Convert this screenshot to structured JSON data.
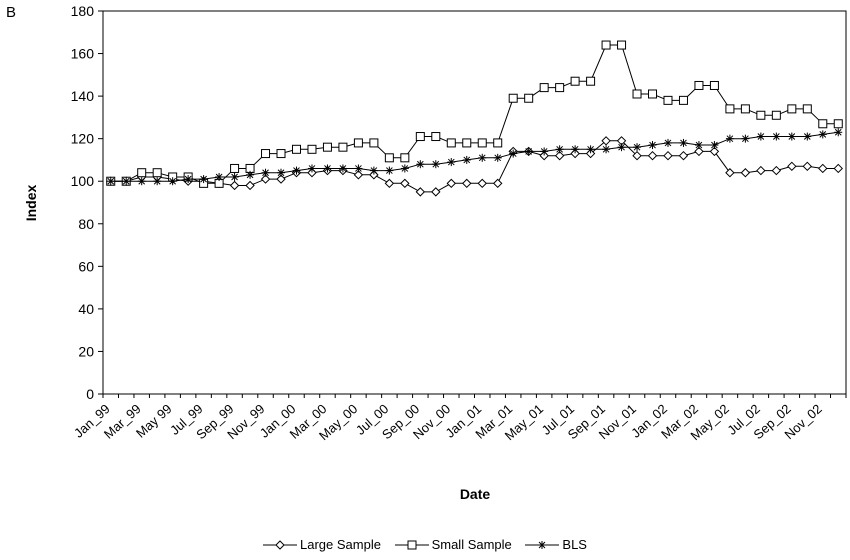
{
  "panel_label": "B",
  "chart_data": {
    "type": "line",
    "xlabel": "Date",
    "ylabel": "Index",
    "ylim": [
      0,
      180
    ],
    "yticks": [
      0,
      20,
      40,
      60,
      80,
      100,
      120,
      140,
      160,
      180
    ],
    "grid": false,
    "legend_position": "bottom",
    "x": [
      "Jan_99",
      "Feb_99",
      "Mar_99",
      "Apr_99",
      "May_99",
      "Jun_99",
      "Jul_99",
      "Aug_99",
      "Sep_99",
      "Oct_99",
      "Nov_99",
      "Dec_99",
      "Jan_00",
      "Feb_00",
      "Mar_00",
      "Apr_00",
      "May_00",
      "Jun_00",
      "Jul_00",
      "Aug_00",
      "Sep_00",
      "Oct_00",
      "Nov_00",
      "Dec_00",
      "Jan_01",
      "Feb_01",
      "Mar_01",
      "Apr_01",
      "May_01",
      "Jun_01",
      "Jul_01",
      "Aug_01",
      "Sep_01",
      "Oct_01",
      "Nov_01",
      "Dec_01",
      "Jan_02",
      "Feb_02",
      "Mar_02",
      "Apr_02",
      "May_02",
      "Jun_02",
      "Jul_02",
      "Aug_02",
      "Sep_02",
      "Oct_02",
      "Nov_02",
      "Dec_02"
    ],
    "xtick_labels": [
      "Jan_99",
      "Mar_99",
      "May 99",
      "Jul_99",
      "Sep_99",
      "Nov_99",
      "Jan_00",
      "Mar_00",
      "May_00",
      "Jul_00",
      "Sep_00",
      "Nov_00",
      "Jan_01",
      "Mar_01",
      "May_01",
      "Jul_01",
      "Sep_01",
      "Nov_01",
      "Jan_02",
      "Mar_02",
      "May_02",
      "Jul_02",
      "Sep_02",
      "Nov_02"
    ],
    "series": [
      {
        "name": "Large Sample",
        "marker": "diamond",
        "values": [
          100,
          100,
          102,
          102,
          101,
          100,
          100,
          99,
          98,
          98,
          101,
          101,
          104,
          104,
          105,
          105,
          103,
          103,
          99,
          99,
          95,
          95,
          99,
          99,
          99,
          99,
          114,
          114,
          112,
          112,
          113,
          113,
          119,
          119,
          112,
          112,
          112,
          112,
          114,
          114,
          104,
          104,
          105,
          105,
          107,
          107,
          106,
          106
        ]
      },
      {
        "name": "Small Sample",
        "marker": "square",
        "values": [
          100,
          100,
          104,
          104,
          102,
          102,
          99,
          99,
          106,
          106,
          113,
          113,
          115,
          115,
          116,
          116,
          118,
          118,
          111,
          111,
          121,
          121,
          118,
          118,
          118,
          118,
          139,
          139,
          144,
          144,
          147,
          147,
          164,
          164,
          141,
          141,
          138,
          138,
          145,
          145,
          134,
          134,
          131,
          131,
          134,
          134,
          127,
          127
        ]
      },
      {
        "name": "BLS",
        "marker": "star",
        "values": [
          100,
          100,
          100,
          100,
          100,
          101,
          101,
          102,
          102,
          103,
          104,
          104,
          105,
          106,
          106,
          106,
          106,
          105,
          105,
          106,
          108,
          108,
          109,
          110,
          111,
          111,
          113,
          114,
          114,
          115,
          115,
          115,
          115,
          116,
          116,
          117,
          118,
          118,
          117,
          117,
          120,
          120,
          121,
          121,
          121,
          121,
          122,
          123
        ]
      }
    ]
  }
}
